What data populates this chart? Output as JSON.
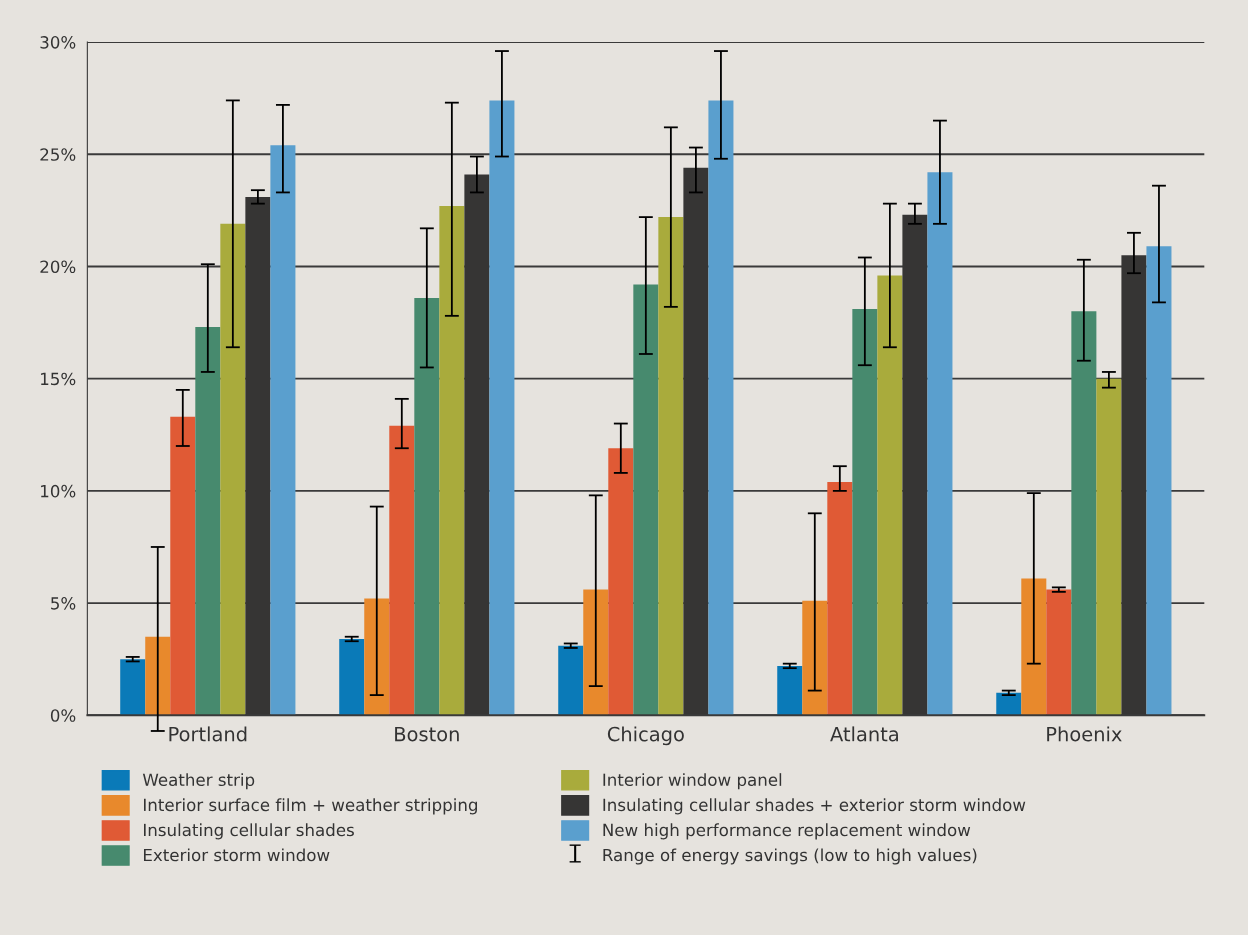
{
  "chart_data": {
    "type": "bar",
    "categories": [
      "Portland",
      "Boston",
      "Chicago",
      "Atlanta",
      "Phoenix"
    ],
    "ylim": [
      0,
      30
    ],
    "yticks": [
      {
        "value": 0,
        "label": "0%"
      },
      {
        "value": 5,
        "label": "5%"
      },
      {
        "value": 10,
        "label": "10%"
      },
      {
        "value": 15,
        "label": "15%"
      },
      {
        "value": 20,
        "label": "20%"
      },
      {
        "value": 25,
        "label": "25%"
      },
      {
        "value": 30,
        "label": "30%"
      }
    ],
    "grid": "y",
    "legend": "bottom",
    "annotations": [
      "Range of energy savings (low to high values)"
    ],
    "series": [
      {
        "name": "Weather strip",
        "color": "#0a7ab8",
        "values": [
          2.5,
          3.4,
          3.1,
          2.2,
          1.0
        ],
        "errors": [
          [
            2.4,
            2.6
          ],
          [
            3.3,
            3.5
          ],
          [
            3.0,
            3.2
          ],
          [
            2.1,
            2.3
          ],
          [
            0.9,
            1.1
          ]
        ]
      },
      {
        "name": "Interior surface film + weather stripping",
        "color": "#e8892c",
        "values": [
          3.5,
          5.2,
          5.6,
          5.1,
          6.1
        ],
        "errors": [
          [
            -0.7,
            7.5
          ],
          [
            0.9,
            9.3
          ],
          [
            1.3,
            9.8
          ],
          [
            1.1,
            9.0
          ],
          [
            2.3,
            9.9
          ]
        ]
      },
      {
        "name": "Insulating cellular shades",
        "color": "#e05a35",
        "values": [
          13.3,
          12.9,
          11.9,
          10.4,
          5.6
        ],
        "errors": [
          [
            12.0,
            14.5
          ],
          [
            11.9,
            14.1
          ],
          [
            10.8,
            13.0
          ],
          [
            10.0,
            11.1
          ],
          [
            5.5,
            5.7
          ]
        ]
      },
      {
        "name": "Exterior storm window",
        "color": "#478a6e",
        "values": [
          17.3,
          18.6,
          19.2,
          18.1,
          18.0
        ],
        "errors": [
          [
            15.3,
            20.1
          ],
          [
            15.5,
            21.7
          ],
          [
            16.1,
            22.2
          ],
          [
            15.6,
            20.4
          ],
          [
            15.8,
            20.3
          ]
        ]
      },
      {
        "name": "Interior window panel",
        "color": "#a9ab3c",
        "values": [
          21.9,
          22.7,
          22.2,
          19.6,
          15.0
        ],
        "errors": [
          [
            16.4,
            27.4
          ],
          [
            17.8,
            27.3
          ],
          [
            18.2,
            26.2
          ],
          [
            16.4,
            22.8
          ],
          [
            14.6,
            15.3
          ]
        ]
      },
      {
        "name": "Insulating cellular shades + exterior storm window",
        "color": "#363534",
        "values": [
          23.1,
          24.1,
          24.4,
          22.3,
          20.5
        ],
        "errors": [
          [
            22.8,
            23.4
          ],
          [
            23.3,
            24.9
          ],
          [
            23.3,
            25.3
          ],
          [
            21.9,
            22.8
          ],
          [
            19.7,
            21.5
          ]
        ]
      },
      {
        "name": "New high performance replacement window",
        "color": "#5a9fce",
        "values": [
          25.4,
          27.4,
          27.4,
          24.2,
          20.9
        ],
        "errors": [
          [
            23.3,
            27.2
          ],
          [
            24.9,
            29.6
          ],
          [
            24.8,
            29.6
          ],
          [
            21.9,
            26.5
          ],
          [
            18.4,
            23.6
          ]
        ]
      }
    ]
  }
}
